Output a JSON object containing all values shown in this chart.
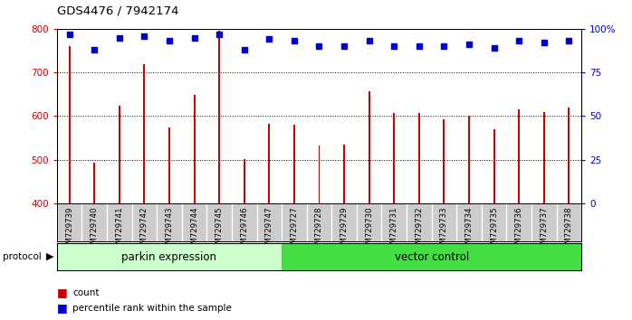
{
  "title": "GDS4476 / 7942174",
  "samples": [
    "GSM729739",
    "GSM729740",
    "GSM729741",
    "GSM729742",
    "GSM729743",
    "GSM729744",
    "GSM729745",
    "GSM729746",
    "GSM729747",
    "GSM729727",
    "GSM729728",
    "GSM729729",
    "GSM729730",
    "GSM729731",
    "GSM729732",
    "GSM729733",
    "GSM729734",
    "GSM729735",
    "GSM729736",
    "GSM729737",
    "GSM729738"
  ],
  "counts": [
    760,
    492,
    623,
    718,
    573,
    648,
    795,
    502,
    583,
    580,
    532,
    534,
    657,
    607,
    606,
    592,
    601,
    570,
    616,
    609,
    619
  ],
  "percentile_ranks": [
    97,
    88,
    95,
    96,
    93,
    95,
    97,
    88,
    94,
    93,
    90,
    90,
    93,
    90,
    90,
    90,
    91,
    89,
    93,
    92,
    93
  ],
  "parkin_count": 9,
  "vector_count": 12,
  "ylim_left": [
    400,
    800
  ],
  "ylim_right": [
    0,
    100
  ],
  "yticks_left": [
    400,
    500,
    600,
    700,
    800
  ],
  "yticks_right": [
    0,
    25,
    50,
    75,
    100
  ],
  "bar_color": "#cc0000",
  "dot_color": "#0000cc",
  "parkin_bg": "#ccffcc",
  "vector_bg": "#44dd44",
  "label_bg": "#cccccc",
  "grid_color": "#000000",
  "bar_width": 0.07,
  "legend_items": [
    {
      "label": "count",
      "color": "#cc0000"
    },
    {
      "label": "percentile rank within the sample",
      "color": "#0000cc"
    }
  ]
}
